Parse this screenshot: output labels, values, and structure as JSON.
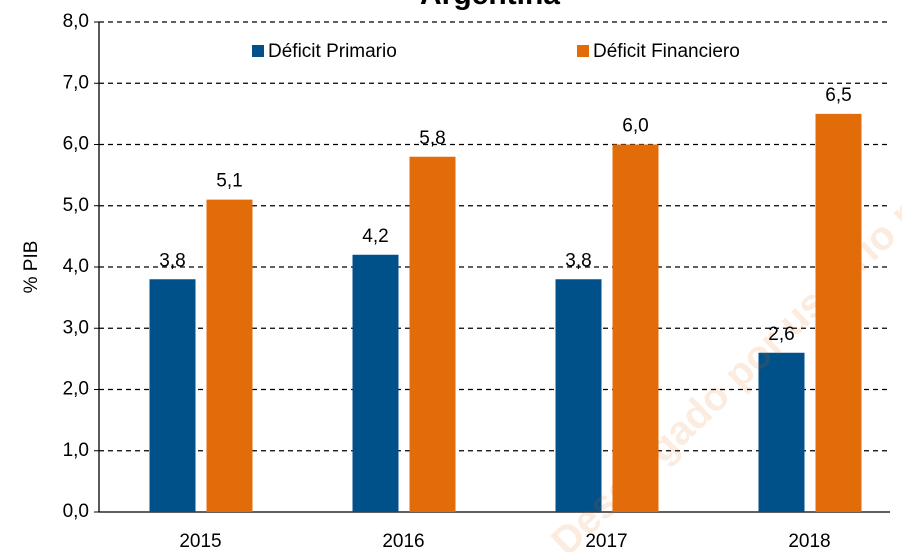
{
  "chart_data": {
    "type": "bar",
    "title": "Argentina",
    "y_label": "% PIB",
    "categories": [
      "2015",
      "2016",
      "2017",
      "2018"
    ],
    "series": [
      {
        "name": "Déficit Primario",
        "color": "#00508a",
        "values": [
          3.8,
          4.2,
          3.8,
          2.6
        ],
        "value_labels": [
          "3,8",
          "4,2",
          "3,8",
          "2,6"
        ]
      },
      {
        "name": "Déficit Financiero",
        "color": "#e36c0a",
        "values": [
          5.1,
          5.8,
          6.0,
          6.5
        ],
        "value_labels": [
          "5,1",
          "5,8",
          "6,0",
          "6,5"
        ]
      }
    ],
    "ylim": [
      0,
      8
    ],
    "yticks": [
      {
        "value": 0,
        "label": "0,0"
      },
      {
        "value": 1,
        "label": "1,0"
      },
      {
        "value": 2,
        "label": "2,0"
      },
      {
        "value": 3,
        "label": "3,0"
      },
      {
        "value": 4,
        "label": "4,0"
      },
      {
        "value": 5,
        "label": "5,0"
      },
      {
        "value": 6,
        "label": "6,0"
      },
      {
        "value": 7,
        "label": "7,0"
      },
      {
        "value": 8,
        "label": "8,0"
      }
    ],
    "grid": true,
    "legend": "top",
    "watermark": "Descargado por usuario no autenticado"
  }
}
